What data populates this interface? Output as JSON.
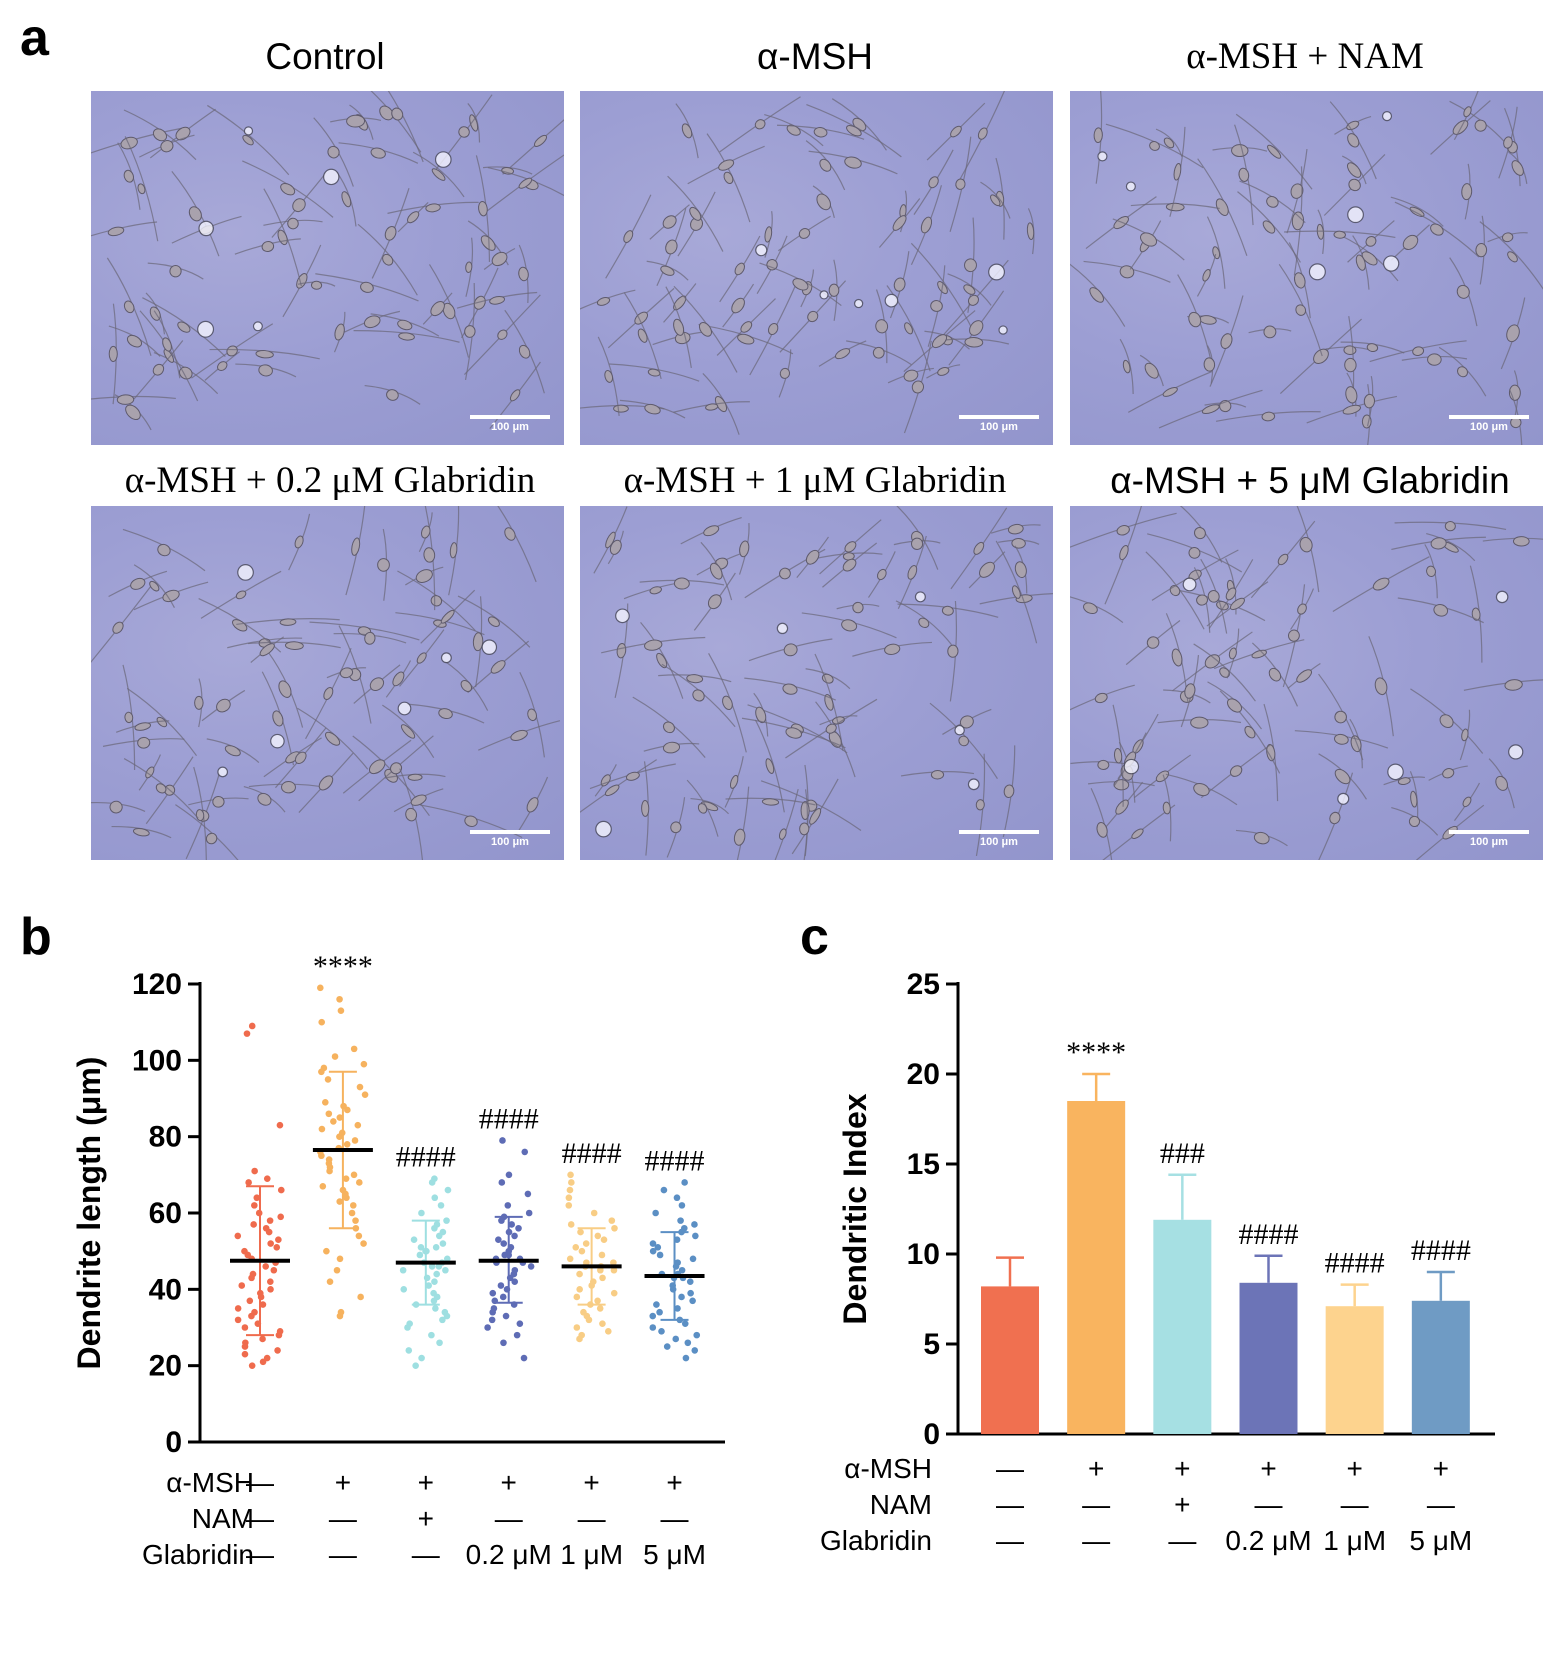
{
  "panel_a": {
    "letter": "a",
    "images": [
      {
        "label": "Control",
        "scale": "100 μm"
      },
      {
        "label": "α-MSH",
        "scale": "100 μm"
      },
      {
        "label": "α-MSH + NAM",
        "scale": "100 μm"
      },
      {
        "label": "α-MSH + 0.2 μM Glabridin",
        "scale": "100 μm"
      },
      {
        "label": "α-MSH + 1 μM Glabridin",
        "scale": "100 μm"
      },
      {
        "label": "α-MSH + 5 μM Glabridin",
        "scale": "100 μm"
      }
    ]
  },
  "chart_data": [
    {
      "panel": "b",
      "type": "scatter",
      "ylabel": "Dendrite length (μm)",
      "ylim": [
        0,
        120
      ],
      "yticks": [
        0,
        20,
        40,
        60,
        80,
        100,
        120
      ],
      "groups": [
        {
          "mean": 47.5,
          "sd_low": 28,
          "sd_high": 67,
          "sig": "",
          "color": "#ef6b4d",
          "points": [
            109,
            107,
            83,
            71,
            69,
            68,
            66,
            64,
            62,
            60,
            59,
            58,
            57,
            56,
            55,
            54,
            53,
            52,
            51,
            50,
            49,
            48,
            47,
            46,
            45,
            44,
            43,
            42,
            41,
            40,
            39,
            38,
            37,
            36,
            35,
            34,
            33,
            32,
            31,
            30,
            29,
            28,
            27,
            26,
            25,
            24,
            23,
            22,
            21,
            20
          ]
        },
        {
          "mean": 76.5,
          "sd_low": 56,
          "sd_high": 97,
          "sig": "****",
          "color": "#f6b25e",
          "points": [
            119,
            116,
            113,
            110,
            103,
            101,
            99,
            98,
            97,
            95,
            93,
            91,
            89,
            88,
            87,
            86,
            85,
            84,
            83,
            82,
            81,
            80,
            79,
            78,
            77,
            76,
            75,
            74,
            73,
            72,
            71,
            70,
            69,
            68,
            67,
            66,
            65,
            64,
            63,
            62,
            60,
            58,
            56,
            54,
            52,
            50,
            48,
            45,
            42,
            38,
            34,
            33
          ]
        },
        {
          "mean": 47,
          "sd_low": 36,
          "sd_high": 58,
          "sig": "####",
          "color": "#9edfe1",
          "points": [
            69,
            68,
            66,
            64,
            62,
            60,
            58,
            57,
            56,
            55,
            54,
            53,
            52,
            51,
            50,
            49,
            48,
            47,
            46,
            45,
            44,
            43,
            42,
            41,
            40,
            39,
            38,
            37,
            36,
            35,
            34,
            33,
            32,
            31,
            30,
            28,
            26,
            24,
            22,
            20,
            47,
            46,
            45,
            50,
            51
          ]
        },
        {
          "mean": 47.5,
          "sd_low": 36.5,
          "sd_high": 59,
          "sig": "####",
          "color": "#5e6cb5",
          "points": [
            79,
            76,
            70,
            68,
            65,
            62,
            60,
            59,
            58,
            57,
            56,
            55,
            54,
            53,
            52,
            51,
            50,
            49,
            48,
            47,
            46,
            45,
            44,
            43,
            42,
            41,
            40,
            39,
            38,
            37,
            36,
            35,
            34,
            33,
            32,
            31,
            30,
            28,
            26,
            22,
            48,
            49,
            47
          ]
        },
        {
          "mean": 46,
          "sd_low": 36,
          "sd_high": 56,
          "sig": "####",
          "color": "#f8cd85",
          "points": [
            70,
            68,
            66,
            64,
            62,
            60,
            58,
            57,
            56,
            55,
            54,
            53,
            52,
            51,
            50,
            49,
            48,
            47,
            46,
            45,
            44,
            43,
            42,
            41,
            40,
            39,
            38,
            37,
            36,
            35,
            34,
            33,
            32,
            31,
            30,
            29,
            28,
            27,
            46,
            47,
            45
          ]
        },
        {
          "mean": 43.5,
          "sd_low": 32,
          "sd_high": 55,
          "sig": "####",
          "color": "#5b8fc4",
          "points": [
            68,
            66,
            64,
            62,
            60,
            58,
            57,
            56,
            55,
            54,
            53,
            52,
            51,
            50,
            49,
            48,
            47,
            46,
            45,
            44,
            43,
            42,
            41,
            40,
            39,
            38,
            37,
            36,
            35,
            34,
            33,
            32,
            31,
            30,
            29,
            28,
            27,
            26,
            25,
            24,
            22,
            44,
            43
          ]
        }
      ],
      "treatment_rows": [
        {
          "label": "α-MSH",
          "values": [
            "—",
            "+",
            "+",
            "+",
            "+",
            "+"
          ]
        },
        {
          "label": "NAM",
          "values": [
            "—",
            "—",
            "+",
            "—",
            "—",
            "—"
          ]
        },
        {
          "label": "Glabridin",
          "values": [
            "—",
            "—",
            "—",
            "0.2 μM",
            "1 μM",
            "5 μM"
          ]
        }
      ]
    },
    {
      "panel": "c",
      "type": "bar",
      "ylabel": "Dendritic Index",
      "ylim": [
        0,
        25
      ],
      "yticks": [
        0,
        5,
        10,
        15,
        20,
        25
      ],
      "values": [
        8.2,
        18.5,
        11.9,
        8.4,
        7.1,
        7.4
      ],
      "errors": [
        1.6,
        1.5,
        2.5,
        1.5,
        1.2,
        1.6
      ],
      "sig": [
        "",
        "****",
        "###",
        "####",
        "####",
        "####"
      ],
      "colors": [
        "#f07050",
        "#f9b45f",
        "#a6e0e3",
        "#6c74b7",
        "#fdd38e",
        "#6f9bc4"
      ],
      "treatment_rows": [
        {
          "label": "α-MSH",
          "values": [
            "—",
            "+",
            "+",
            "+",
            "+",
            "+"
          ]
        },
        {
          "label": "NAM",
          "values": [
            "—",
            "—",
            "+",
            "—",
            "—",
            "—"
          ]
        },
        {
          "label": "Glabridin",
          "values": [
            "—",
            "—",
            "—",
            "0.2 μM",
            "1 μM",
            "5 μM"
          ]
        }
      ]
    }
  ]
}
